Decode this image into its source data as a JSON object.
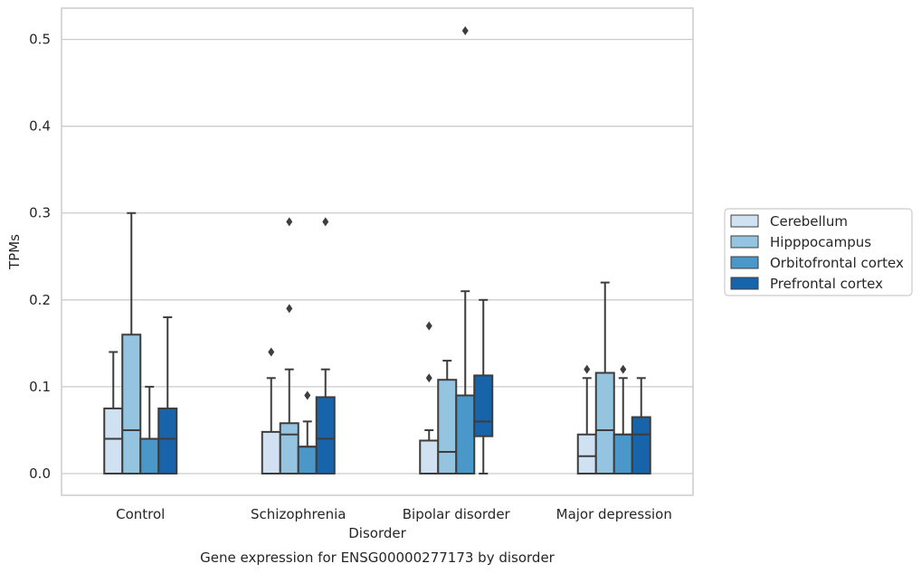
{
  "chart_data": {
    "type": "box",
    "caption": "Gene expression for ENSG00000277173 by disorder",
    "xlabel": "Disorder",
    "ylabel": "TPMs",
    "ylim": [
      -0.025,
      0.536
    ],
    "yticks": [
      "0.0",
      "0.1",
      "0.2",
      "0.3",
      "0.4",
      "0.5"
    ],
    "grid": "horizontal",
    "legend_position": "right",
    "categories": [
      "Control",
      "Schizophrenia",
      "Bipolar disorder",
      "Major depression"
    ],
    "series": [
      {
        "name": "Cerebellum",
        "color": "#d0e1f2",
        "boxes": [
          {
            "whislo": 0.0,
            "q1": 0.0,
            "med": 0.04,
            "q3": 0.075,
            "whishi": 0.14,
            "fliers": []
          },
          {
            "whislo": 0.0,
            "q1": 0.0,
            "med": 0.0,
            "q3": 0.048,
            "whishi": 0.11,
            "fliers": [
              0.14
            ]
          },
          {
            "whislo": 0.0,
            "q1": 0.0,
            "med": 0.0,
            "q3": 0.038,
            "whishi": 0.05,
            "fliers": [
              0.11,
              0.17
            ]
          },
          {
            "whislo": 0.0,
            "q1": 0.0,
            "med": 0.02,
            "q3": 0.045,
            "whishi": 0.11,
            "fliers": [
              0.12
            ]
          }
        ]
      },
      {
        "name": "Hipppocampus",
        "color": "#94c4df",
        "boxes": [
          {
            "whislo": 0.0,
            "q1": 0.0,
            "med": 0.05,
            "q3": 0.16,
            "whishi": 0.3,
            "fliers": []
          },
          {
            "whislo": 0.0,
            "q1": 0.0,
            "med": 0.045,
            "q3": 0.058,
            "whishi": 0.12,
            "fliers": [
              0.19,
              0.29
            ]
          },
          {
            "whislo": 0.0,
            "q1": 0.0,
            "med": 0.025,
            "q3": 0.108,
            "whishi": 0.13,
            "fliers": []
          },
          {
            "whislo": 0.0,
            "q1": 0.0,
            "med": 0.05,
            "q3": 0.116,
            "whishi": 0.22,
            "fliers": []
          }
        ]
      },
      {
        "name": "Orbitofrontal cortex",
        "color": "#4a98c9",
        "boxes": [
          {
            "whislo": 0.0,
            "q1": 0.0,
            "med": 0.04,
            "q3": 0.04,
            "whishi": 0.1,
            "fliers": []
          },
          {
            "whislo": 0.0,
            "q1": 0.0,
            "med": 0.031,
            "q3": 0.031,
            "whishi": 0.06,
            "fliers": [
              0.09
            ]
          },
          {
            "whislo": 0.0,
            "q1": 0.0,
            "med": 0.09,
            "q3": 0.09,
            "whishi": 0.21,
            "fliers": [
              0.51
            ]
          },
          {
            "whislo": 0.0,
            "q1": 0.0,
            "med": 0.045,
            "q3": 0.045,
            "whishi": 0.11,
            "fliers": [
              0.12
            ]
          }
        ]
      },
      {
        "name": "Prefrontal cortex",
        "color": "#1764ab",
        "boxes": [
          {
            "whislo": 0.0,
            "q1": 0.0,
            "med": 0.04,
            "q3": 0.075,
            "whishi": 0.18,
            "fliers": []
          },
          {
            "whislo": 0.0,
            "q1": 0.0,
            "med": 0.04,
            "q3": 0.088,
            "whishi": 0.12,
            "fliers": [
              0.29
            ]
          },
          {
            "whislo": 0.0,
            "q1": 0.043,
            "med": 0.06,
            "q3": 0.113,
            "whishi": 0.2,
            "fliers": []
          },
          {
            "whislo": 0.0,
            "q1": 0.0,
            "med": 0.045,
            "q3": 0.065,
            "whishi": 0.11,
            "fliers": []
          }
        ]
      }
    ]
  }
}
